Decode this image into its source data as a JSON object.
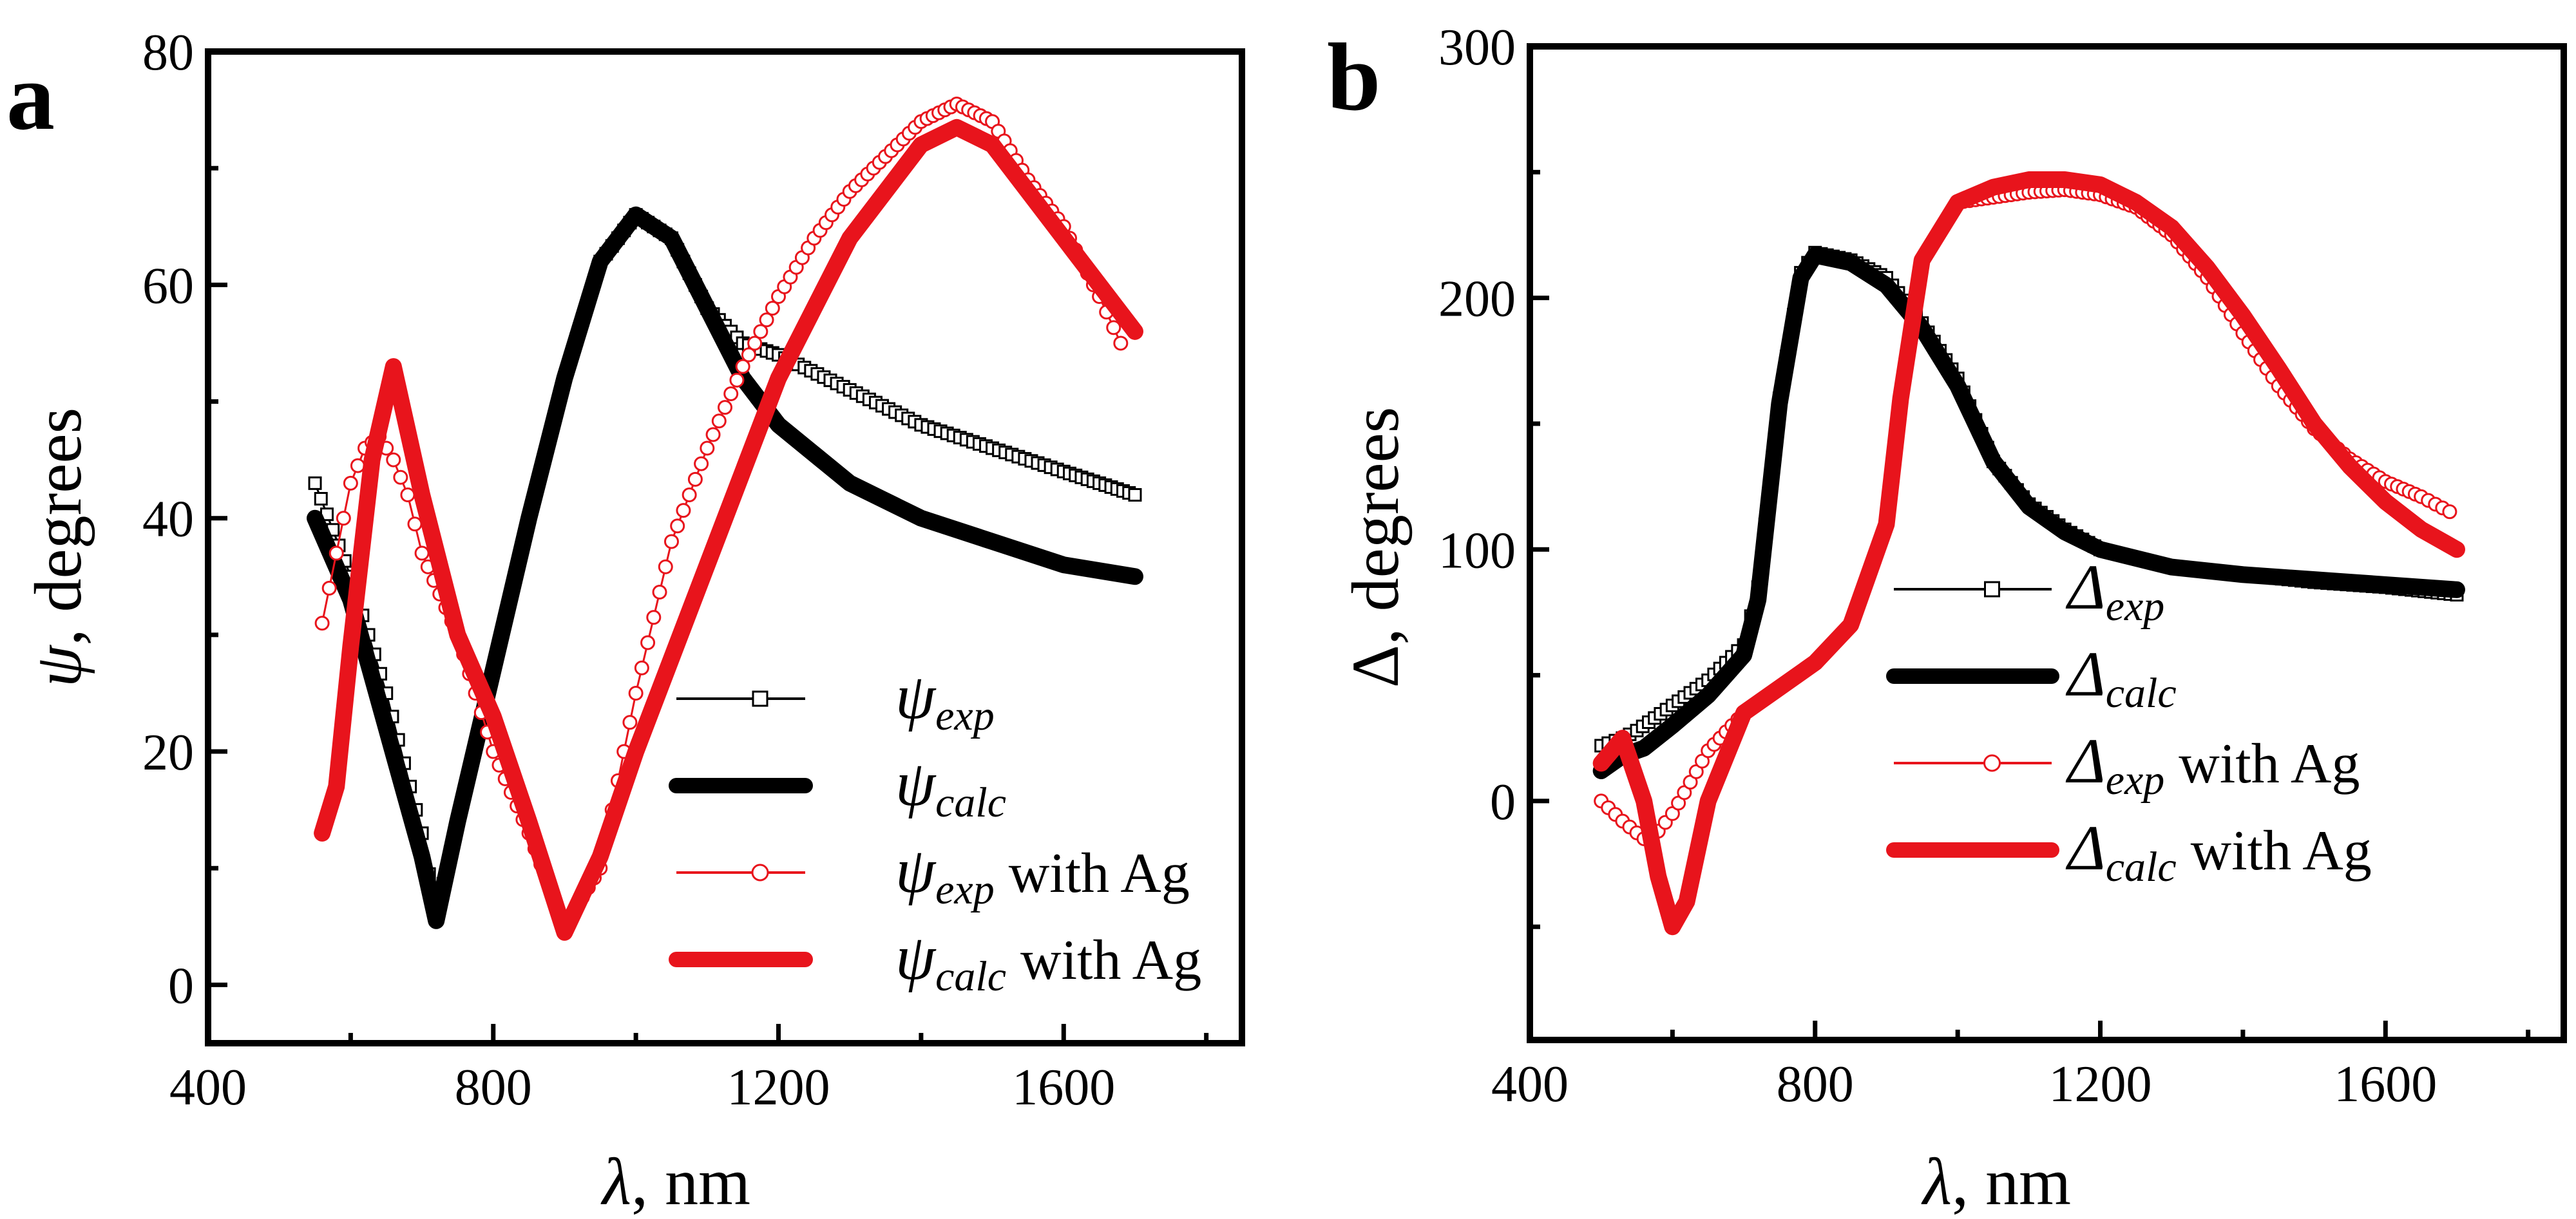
{
  "chart_data": [
    {
      "type": "line",
      "panel_label": "a",
      "xlabel_sym": "λ",
      "xlabel_rest": ", nm",
      "ylabel_sym": "ψ",
      "ylabel_rest": ", degrees",
      "xlim": [
        400,
        1850
      ],
      "ylim": [
        -5,
        80
      ],
      "xticks": [
        400,
        800,
        1200,
        1600
      ],
      "yticks": [
        0,
        20,
        40,
        60,
        80
      ],
      "legend_position": "bottom-right",
      "series": [
        {
          "name": "ψ_exp",
          "sym": "ψ",
          "sub": "exp",
          "suffix": "",
          "color": "#000000",
          "style": "markers",
          "marker": "square",
          "x": [
            550,
            600,
            650,
            700,
            720,
            750,
            800,
            850,
            900,
            950,
            1000,
            1050,
            1100,
            1150,
            1200,
            1300,
            1400,
            1500,
            1600,
            1650,
            1700
          ],
          "y": [
            43,
            35,
            25,
            13,
            6,
            14,
            27,
            40,
            52,
            62,
            66,
            64,
            58,
            55,
            54,
            51,
            48,
            46,
            44,
            43,
            42
          ]
        },
        {
          "name": "ψ_calc",
          "sym": "ψ",
          "sub": "calc",
          "suffix": "",
          "color": "#000000",
          "style": "thick",
          "x": [
            550,
            600,
            650,
            700,
            720,
            750,
            800,
            850,
            900,
            950,
            1000,
            1050,
            1100,
            1150,
            1200,
            1300,
            1400,
            1500,
            1600,
            1700
          ],
          "y": [
            40,
            33,
            22,
            11,
            5.5,
            14,
            27,
            40,
            52,
            62,
            66,
            64,
            58,
            52,
            48,
            43,
            40,
            38,
            36,
            35
          ]
        },
        {
          "name": "ψ_exp with Ag",
          "sym": "ψ",
          "sub": "exp",
          "suffix": " with Ag",
          "color": "#e8141c",
          "style": "markers",
          "marker": "circle",
          "x": [
            560,
            580,
            600,
            620,
            640,
            660,
            680,
            700,
            750,
            800,
            850,
            900,
            950,
            1000,
            1050,
            1100,
            1150,
            1200,
            1250,
            1300,
            1350,
            1400,
            1450,
            1500,
            1550,
            1600,
            1650,
            1680
          ],
          "y": [
            31,
            37,
            43,
            46,
            47,
            45,
            42,
            37,
            30,
            20,
            13,
            5,
            10,
            25,
            38,
            46,
            53,
            59,
            64,
            68,
            71,
            74,
            75.5,
            74,
            69,
            65,
            59,
            55
          ]
        },
        {
          "name": "ψ_calc with Ag",
          "sym": "ψ",
          "sub": "calc",
          "suffix": " with Ag",
          "color": "#e8141c",
          "style": "thick",
          "x": [
            560,
            580,
            600,
            630,
            660,
            700,
            750,
            800,
            850,
            900,
            950,
            1000,
            1100,
            1200,
            1300,
            1400,
            1450,
            1500,
            1550,
            1600,
            1650,
            1700
          ],
          "y": [
            13,
            17,
            29,
            45,
            53,
            42,
            30,
            23,
            14,
            4.5,
            11,
            20,
            36,
            52,
            64,
            72,
            73.5,
            72,
            68,
            64,
            60,
            56
          ]
        }
      ]
    },
    {
      "type": "line",
      "panel_label": "b",
      "xlabel_sym": "λ",
      "xlabel_rest": ", nm",
      "ylabel_sym": "Δ",
      "ylabel_rest": ", degrees",
      "xlim": [
        400,
        1850
      ],
      "ylim": [
        -95,
        300
      ],
      "xticks": [
        400,
        800,
        1200,
        1600
      ],
      "yticks": [
        0,
        100,
        200,
        300
      ],
      "legend_position": "bottom-center",
      "series": [
        {
          "name": "Δ_exp",
          "sym": "Δ",
          "sub": "exp",
          "suffix": "",
          "color": "#000000",
          "style": "markers",
          "marker": "square",
          "x": [
            500,
            530,
            550,
            600,
            650,
            700,
            720,
            750,
            780,
            800,
            850,
            900,
            950,
            1000,
            1050,
            1100,
            1150,
            1200,
            1300,
            1400,
            1500,
            1600,
            1700
          ],
          "y": [
            22,
            25,
            28,
            38,
            48,
            62,
            85,
            160,
            210,
            218,
            215,
            208,
            190,
            168,
            135,
            118,
            108,
            100,
            93,
            90,
            87,
            85,
            82
          ]
        },
        {
          "name": "Δ_calc",
          "sym": "Δ",
          "sub": "calc",
          "suffix": "",
          "color": "#000000",
          "style": "thick",
          "x": [
            500,
            530,
            560,
            600,
            650,
            700,
            720,
            750,
            780,
            800,
            850,
            900,
            950,
            1000,
            1050,
            1100,
            1150,
            1200,
            1300,
            1400,
            1500,
            1600,
            1700
          ],
          "y": [
            12,
            18,
            21,
            30,
            42,
            58,
            80,
            158,
            208,
            217,
            214,
            205,
            188,
            165,
            135,
            117,
            107,
            100,
            93,
            90,
            88,
            86,
            84
          ]
        },
        {
          "name": "Δ_exp with Ag",
          "sym": "Δ",
          "sub": "exp",
          "suffix": " with Ag",
          "color": "#e8141c",
          "style": "markers",
          "marker": "circle",
          "x": [
            500,
            530,
            560,
            580,
            600,
            650,
            700,
            750,
            800,
            850,
            900,
            920,
            950,
            1000,
            1050,
            1100,
            1150,
            1200,
            1250,
            1300,
            1350,
            1400,
            1450,
            1500,
            1550,
            1600,
            1650,
            1690
          ],
          "y": [
            0,
            -8,
            -15,
            -12,
            -5,
            20,
            35,
            45,
            55,
            70,
            110,
            160,
            215,
            238,
            240,
            242,
            243,
            241,
            236,
            225,
            208,
            186,
            165,
            148,
            136,
            127,
            121,
            115
          ]
        },
        {
          "name": "Δ_calc with Ag",
          "sym": "Δ",
          "sub": "calc",
          "suffix": " with Ag",
          "color": "#e8141c",
          "style": "thick",
          "x": [
            500,
            530,
            560,
            580,
            600,
            620,
            650,
            700,
            750,
            800,
            850,
            900,
            920,
            950,
            1000,
            1050,
            1100,
            1150,
            1200,
            1250,
            1300,
            1350,
            1400,
            1450,
            1500,
            1550,
            1600,
            1650,
            1700
          ],
          "y": [
            15,
            25,
            0,
            -30,
            -50,
            -40,
            0,
            35,
            45,
            55,
            70,
            110,
            160,
            215,
            238,
            244,
            247,
            247,
            245,
            238,
            228,
            212,
            193,
            172,
            150,
            133,
            119,
            108,
            100
          ]
        }
      ]
    }
  ]
}
